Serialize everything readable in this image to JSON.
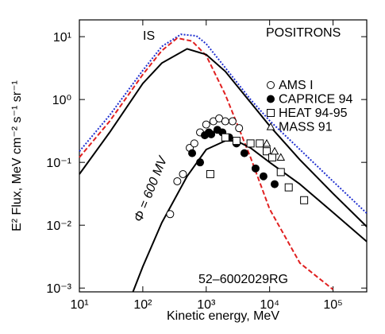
{
  "chart_data": {
    "type": "scatter",
    "title": "POSITRONS",
    "x_label": "Kinetic energy, MeV",
    "y_label": "E² Flux, MeV cm⁻² s⁻¹ sr⁻¹",
    "annotations": [
      "IS",
      "Φ = 600 MV",
      "52–6002029RG"
    ],
    "log_x": true,
    "log_y": true,
    "xlim": [
      10,
      340000
    ],
    "ylim": [
      0.00087,
      18.5
    ],
    "xticks": [
      {
        "value": 10,
        "label": "10¹"
      },
      {
        "value": 100,
        "label": "10²"
      },
      {
        "value": 1000,
        "label": "10³"
      },
      {
        "value": 10000,
        "label": "10⁴"
      },
      {
        "value": 100000,
        "label": "10⁵"
      }
    ],
    "yticks": [
      {
        "value": 0.001,
        "label": "10⁻³"
      },
      {
        "value": 0.01,
        "label": "10⁻²"
      },
      {
        "value": 0.1,
        "label": "10⁻¹"
      },
      {
        "value": 1,
        "label": "10⁰"
      },
      {
        "value": 10,
        "label": "10¹"
      }
    ],
    "lines": [
      {
        "color": "#1f2fd0",
        "style": "dotted",
        "x": [
          10,
          30,
          100,
          200,
          400,
          700,
          1000,
          2000,
          5000,
          10000,
          30000,
          100000,
          340000
        ],
        "values": [
          0.15,
          0.56,
          2.9,
          7.0,
          10.9,
          10.3,
          7.7,
          3.2,
          1.0,
          0.46,
          0.16,
          0.05,
          0.0155
        ]
      },
      {
        "color": "#e02020",
        "style": "dashed",
        "x": [
          10,
          30,
          100,
          200,
          350,
          600,
          1000,
          2000,
          5000,
          10000,
          30000,
          100000
        ],
        "values": [
          0.12,
          0.45,
          2.5,
          6.0,
          9.5,
          8.5,
          5.0,
          1.2,
          0.12,
          0.018,
          0.0025,
          0.00095
        ]
      },
      {
        "color": "#000000",
        "style": "solid",
        "x": [
          10,
          30,
          100,
          200,
          500,
          1000,
          2000,
          5000,
          10000,
          30000,
          100000,
          340000
        ],
        "values": [
          0.065,
          0.3,
          1.8,
          3.8,
          6.4,
          5.2,
          2.8,
          0.9,
          0.38,
          0.11,
          0.032,
          0.0095
        ]
      },
      {
        "color": "#000000",
        "style": "solid",
        "x": [
          70,
          100,
          200,
          500,
          1000,
          2000,
          3000,
          5000,
          10000,
          30000,
          100000,
          340000
        ],
        "values": [
          0.00087,
          0.0022,
          0.011,
          0.06,
          0.16,
          0.22,
          0.22,
          0.17,
          0.1,
          0.045,
          0.016,
          0.0055
        ]
      }
    ],
    "series": [
      {
        "name": "AMS I",
        "marker": "open-circle",
        "color": "#000000",
        "x": [
          270,
          350,
          430,
          550,
          650,
          800,
          1000,
          1300,
          1600,
          2000,
          2600,
          3300
        ],
        "values": [
          0.015,
          0.05,
          0.065,
          0.17,
          0.2,
          0.3,
          0.4,
          0.45,
          0.5,
          0.45,
          0.45,
          0.35
        ]
      },
      {
        "name": "CAPRICE 94",
        "marker": "filled-circle",
        "color": "#000000",
        "x": [
          600,
          800,
          950,
          1100,
          1200,
          1500,
          1800,
          2300,
          3000,
          4000,
          6000,
          8000,
          12000
        ],
        "values": [
          0.14,
          0.1,
          0.27,
          0.3,
          0.28,
          0.33,
          0.3,
          0.25,
          0.2,
          0.14,
          0.08,
          0.06,
          0.045
        ]
      },
      {
        "name": "HEAT 94-95",
        "marker": "open-square",
        "color": "#000000",
        "x": [
          1160,
          2000,
          3000,
          5000,
          7000,
          9000,
          11000,
          15000,
          20000,
          35000
        ],
        "values": [
          0.065,
          0.25,
          0.22,
          0.2,
          0.2,
          0.15,
          0.12,
          0.07,
          0.04,
          0.025
        ]
      },
      {
        "name": "MASS 91",
        "marker": "open-triangle",
        "color": "#000000",
        "x": [
          9000,
          12000,
          15000
        ],
        "values": [
          0.2,
          0.15,
          0.12
        ]
      }
    ]
  }
}
